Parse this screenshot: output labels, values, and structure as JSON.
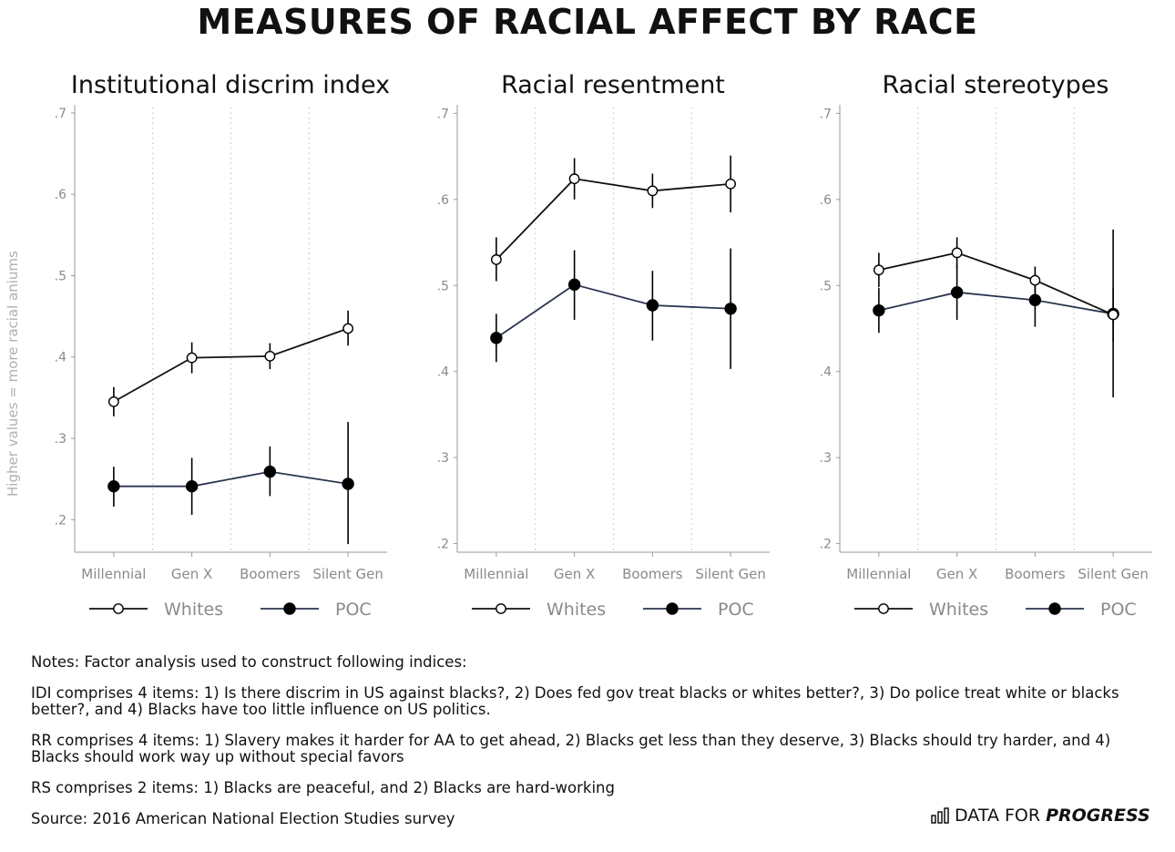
{
  "title": "MEASURES OF RACIAL AFFECT BY RACE",
  "ylabel": "Higher values = more racial aniums",
  "categories": [
    "Millennial",
    "Gen X",
    "Boomers",
    "Silent Gen"
  ],
  "legend": [
    "Whites",
    "POC"
  ],
  "colors": {
    "whites_line": "#111111",
    "poc_line": "#2b3550",
    "poc_marker": "#000000",
    "axis": "#9a9a9a",
    "grid": "#c8c8c8"
  },
  "chart_data": [
    {
      "type": "line",
      "title": "Institutional discrim index",
      "categories": [
        "Millennial",
        "Gen X",
        "Boomers",
        "Silent Gen"
      ],
      "yticks": [
        ".2",
        ".3",
        ".4",
        ".5",
        ".6",
        ".7"
      ],
      "ylim": [
        0.16,
        0.71
      ],
      "grid": "vertical dotted",
      "legend_position": "bottom",
      "series": [
        {
          "name": "Whites",
          "values": [
            0.345,
            0.399,
            0.401,
            0.435
          ],
          "ci_low": [
            0.327,
            0.38,
            0.385,
            0.414
          ],
          "ci_high": [
            0.363,
            0.418,
            0.417,
            0.457
          ]
        },
        {
          "name": "POC",
          "values": [
            0.241,
            0.241,
            0.259,
            0.244
          ],
          "ci_low": [
            0.216,
            0.206,
            0.229,
            0.17
          ],
          "ci_high": [
            0.265,
            0.276,
            0.29,
            0.32
          ]
        }
      ]
    },
    {
      "type": "line",
      "title": "Racial resentment",
      "categories": [
        "Millennial",
        "Gen X",
        "Boomers",
        "Silent Gen"
      ],
      "yticks": [
        ".2",
        ".3",
        ".4",
        ".5",
        ".6",
        ".7"
      ],
      "ylim": [
        0.19,
        0.71
      ],
      "grid": "vertical dotted",
      "legend_position": "bottom",
      "series": [
        {
          "name": "Whites",
          "values": [
            0.53,
            0.624,
            0.61,
            0.618
          ],
          "ci_low": [
            0.505,
            0.6,
            0.59,
            0.585
          ],
          "ci_high": [
            0.556,
            0.648,
            0.63,
            0.651
          ]
        },
        {
          "name": "POC",
          "values": [
            0.439,
            0.501,
            0.477,
            0.473
          ],
          "ci_low": [
            0.411,
            0.46,
            0.436,
            0.403
          ],
          "ci_high": [
            0.467,
            0.541,
            0.517,
            0.543
          ]
        }
      ]
    },
    {
      "type": "line",
      "title": "Racial stereotypes",
      "categories": [
        "Millennial",
        "Gen X",
        "Boomers",
        "Silent Gen"
      ],
      "yticks": [
        ".2",
        ".3",
        ".4",
        ".5",
        ".6",
        ".7"
      ],
      "ylim": [
        0.19,
        0.71
      ],
      "grid": "vertical dotted",
      "legend_position": "bottom",
      "series": [
        {
          "name": "Whites",
          "values": [
            0.518,
            0.538,
            0.506,
            0.466
          ],
          "ci_low": [
            0.498,
            0.52,
            0.49,
            0.435
          ],
          "ci_high": [
            0.538,
            0.556,
            0.522,
            0.497
          ]
        },
        {
          "name": "POC",
          "values": [
            0.471,
            0.492,
            0.483,
            0.467
          ],
          "ci_low": [
            0.445,
            0.46,
            0.452,
            0.37
          ],
          "ci_high": [
            0.497,
            0.524,
            0.514,
            0.565
          ]
        }
      ]
    }
  ],
  "notes": [
    "Notes: Factor analysis used to construct following indices:",
    "IDI comprises 4 items: 1) Is there discrim in US against blacks?, 2) Does fed gov treat blacks or whites better?, 3) Do police treat white or blacks better?, and 4) Blacks have too little influence on US politics.",
    "RR comprises 4 items: 1) Slavery makes it harder for AA to get ahead, 2) Blacks get less than they deserve, 3) Blacks should try harder, and 4) Blacks should work way up without special favors",
    "RS comprises 2 items: 1) Blacks are peaceful, and 2) Blacks are hard-working",
    "Source: 2016 American National Election Studies survey"
  ],
  "brand": {
    "light": "DATA FOR",
    "bold": "PROGRESS",
    "icon": "bar-chart-icon"
  }
}
